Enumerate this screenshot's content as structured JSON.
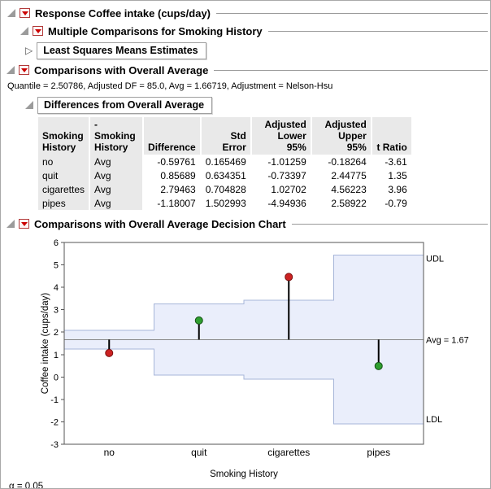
{
  "outline": {
    "response_title": "Response Coffee intake (cups/day)",
    "multiple_comparisons_title": "Multiple Comparisons for Smoking History",
    "lsm_estimates_title": "Least Squares Means Estimates",
    "comparisons_title": "Comparisons with Overall Average",
    "quantile_line": "Quantile = 2.50786, Adjusted DF = 85.0, Avg = 1.66719, Adjustment = Nelson-Hsu",
    "differences_title": "Differences from Overall Average",
    "decision_chart_title": "Comparisons with Overall Average Decision Chart",
    "alpha_note": "α = 0.05"
  },
  "table": {
    "headers": [
      {
        "line1": "Smoking",
        "line2": "History"
      },
      {
        "line1": "-Smoking",
        "line2": "History"
      },
      {
        "line1": "",
        "line2": "Difference"
      },
      {
        "line1": "",
        "line2": "Std Error"
      },
      {
        "line1": "Adjusted",
        "line2": "Lower 95%"
      },
      {
        "line1": "Adjusted",
        "line2": "Upper 95%"
      },
      {
        "line1": "",
        "line2": "t Ratio"
      }
    ],
    "rows": [
      [
        "no",
        "Avg",
        "-0.59761",
        "0.165469",
        "-1.01259",
        "-0.18264",
        "-3.61"
      ],
      [
        "quit",
        "Avg",
        "0.85689",
        "0.634351",
        "-0.73397",
        "2.44775",
        "1.35"
      ],
      [
        "cigarettes",
        "Avg",
        "2.79463",
        "0.704828",
        "1.02702",
        "4.56223",
        "3.96"
      ],
      [
        "pipes",
        "Avg",
        "-1.18007",
        "1.502993",
        "-4.94936",
        "2.58922",
        "-0.79"
      ]
    ]
  },
  "chart_data": {
    "type": "decision-chart",
    "title": "Comparisons with Overall Average Decision Chart",
    "xlabel": "Smoking History",
    "ylabel": "Coffee intake (cups/day)",
    "ylim": [
      -3,
      6
    ],
    "yticks": [
      6,
      5,
      4,
      3,
      2,
      1,
      0,
      -1,
      -2,
      -3
    ],
    "categories": [
      "no",
      "quit",
      "cigarettes",
      "pipes"
    ],
    "avg": 1.67,
    "avg_label": "Avg = 1.67",
    "udl_label": "UDL",
    "udl_value": 5.44,
    "ldl_label": "LDL",
    "ldl_value": -2.1,
    "groups": [
      {
        "name": "no",
        "mean": 1.07,
        "lower": 1.25,
        "upper": 2.08,
        "significant": true
      },
      {
        "name": "quit",
        "mean": 2.52,
        "lower": 0.08,
        "upper": 3.26,
        "significant": false
      },
      {
        "name": "cigarettes",
        "mean": 4.46,
        "lower": -0.1,
        "upper": 3.43,
        "significant": true
      },
      {
        "name": "pipes",
        "mean": 0.49,
        "lower": -2.1,
        "upper": 5.44,
        "significant": false
      }
    ],
    "colors": {
      "significant": "#cc2222",
      "not_significant": "#2f9e2f",
      "band_fill": "#eaeefb",
      "band_stroke": "#a7b6d9",
      "needle": "#000000",
      "avg_line": "#888888"
    }
  }
}
